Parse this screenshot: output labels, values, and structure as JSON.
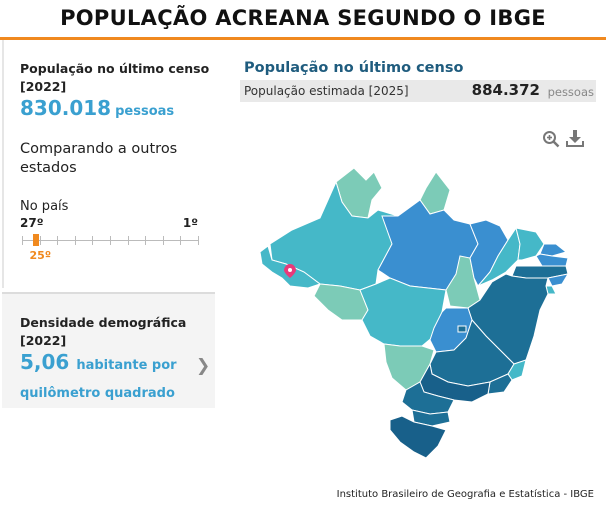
{
  "header": {
    "title": "POPULAÇÃO ACREANA SEGUNDO O IBGE"
  },
  "left_panel": {
    "population": {
      "label": "População no último censo [2022]",
      "value": "830.018",
      "unit": "pessoas"
    },
    "compare": {
      "title": "Comparando a outros estados",
      "scope": "No país",
      "rank_min": "27º",
      "rank_max": "1º",
      "rank_current": "25º",
      "rank_position": 25,
      "rank_total": 27
    },
    "density": {
      "label": "Densidade demográfica [2022]",
      "value": "5,06",
      "unit": "habitante por quilômetro quadrado"
    }
  },
  "map_panel": {
    "title": "População no último censo",
    "estimate": {
      "label": "População estimada [2025]",
      "value": "884.372",
      "unit": "pessoas"
    },
    "icons": [
      "zoom-in-icon",
      "download-icon"
    ],
    "highlight_state": "Acre"
  },
  "colors": {
    "accent": "#f0891f",
    "value_blue": "#3aa0d0",
    "title_blue": "#1f5c7e",
    "map_light": "#7ccbb7",
    "map_teal": "#45b8c8",
    "map_blue": "#3a8fd0",
    "map_dark": "#1d6f96",
    "map_darker": "#18608a",
    "marker": "#e83a7a"
  },
  "footer": {
    "source": "Instituto Brasileiro de Geografia e Estatística - IBGE"
  }
}
